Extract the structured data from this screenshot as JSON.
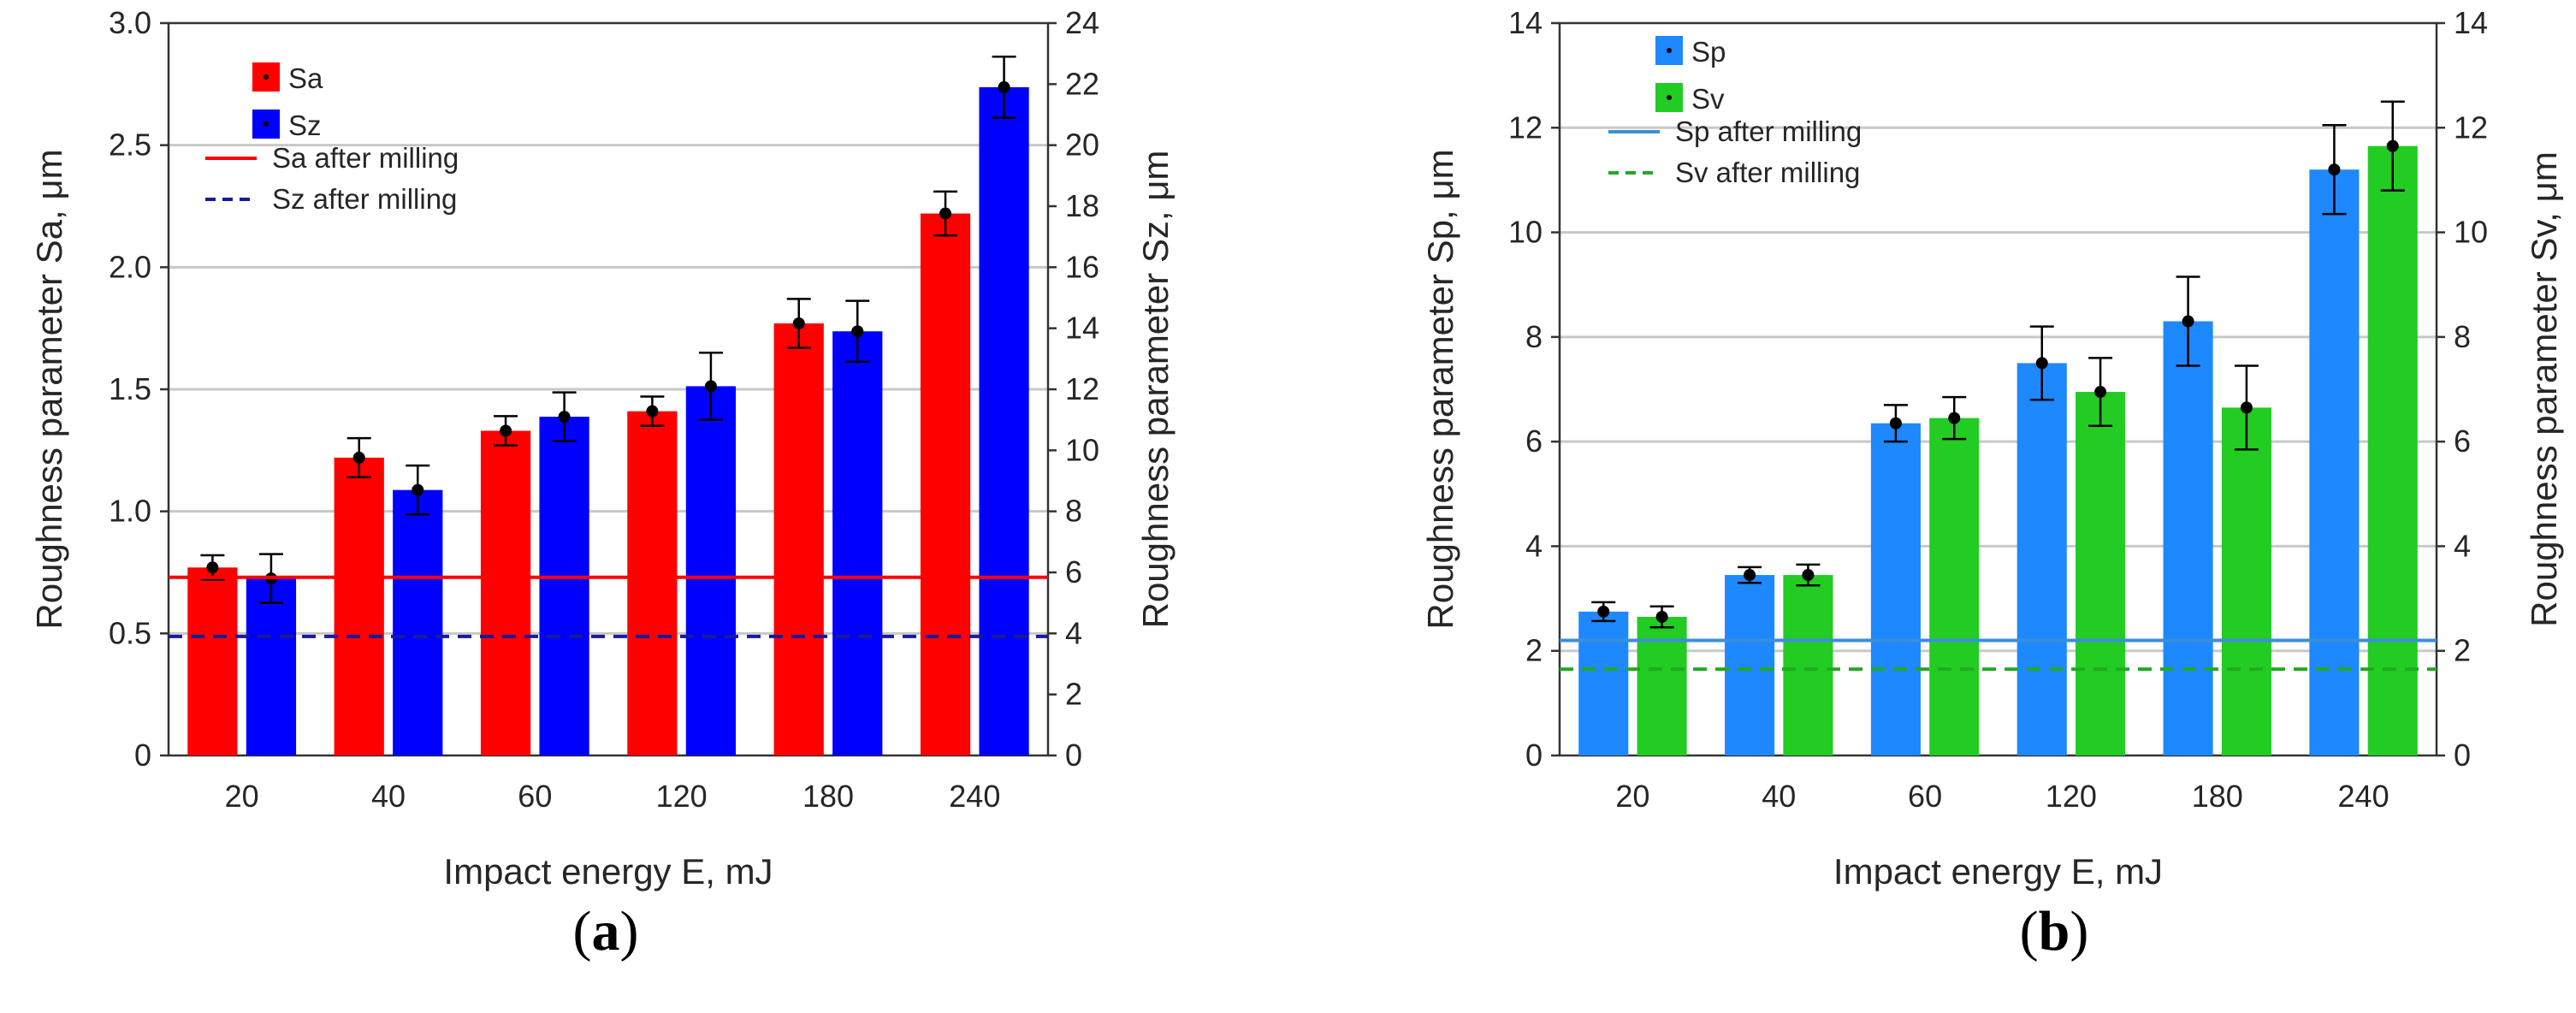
{
  "chart_data": [
    {
      "type": "bar",
      "panel_label": "a",
      "categories": [
        "20",
        "40",
        "60",
        "120",
        "180",
        "240"
      ],
      "xlabel": "Impact energy E, mJ",
      "ylabel": "Roughness parameter Sa, μm",
      "ylabel_right": "Roughness parameter Sz, μm",
      "ylim": [
        0,
        3.0
      ],
      "yticks": [
        "0",
        "0.5",
        "1.0",
        "1.5",
        "2.0",
        "2.5",
        "3.0"
      ],
      "ylim_right": [
        0,
        24
      ],
      "yticks_right": [
        "0",
        "2",
        "4",
        "6",
        "8",
        "10",
        "12",
        "14",
        "16",
        "18",
        "20",
        "22",
        "24"
      ],
      "grid": true,
      "legend_position": "top-left",
      "series": [
        {
          "name": "Sa",
          "axis": "left",
          "color": "#ff0000",
          "values": [
            0.77,
            1.22,
            1.33,
            1.41,
            1.77,
            2.22
          ],
          "errors": [
            0.05,
            0.08,
            0.06,
            0.06,
            0.1,
            0.09
          ]
        },
        {
          "name": "Sz",
          "axis": "right",
          "color": "#0000ff",
          "values": [
            5.8,
            8.7,
            11.1,
            12.1,
            13.9,
            21.9
          ],
          "errors": [
            0.8,
            0.8,
            0.8,
            1.1,
            1.0,
            1.0
          ]
        }
      ],
      "reference_lines": [
        {
          "name": "Sa after milling",
          "axis": "left",
          "value": 0.73,
          "color": "#ff0000",
          "style": "solid"
        },
        {
          "name": "Sz after milling",
          "axis": "right",
          "value": 3.9,
          "color": "#1a1a99",
          "style": "dashed"
        }
      ]
    },
    {
      "type": "bar",
      "panel_label": "b",
      "categories": [
        "20",
        "40",
        "60",
        "120",
        "180",
        "240"
      ],
      "xlabel": "Impact energy E, mJ",
      "ylabel": "Roughness parameter Sp, μm",
      "ylabel_right": "Roughness parameter Sv, μm",
      "ylim": [
        0,
        14
      ],
      "yticks": [
        "0",
        "2",
        "4",
        "6",
        "8",
        "10",
        "12",
        "14"
      ],
      "ylim_right": [
        0,
        14
      ],
      "yticks_right": [
        "0",
        "2",
        "4",
        "6",
        "8",
        "10",
        "12",
        "14"
      ],
      "grid": true,
      "legend_position": "top-left",
      "series": [
        {
          "name": "Sp",
          "axis": "left",
          "color": "#1e88ff",
          "values": [
            2.75,
            3.45,
            6.35,
            7.5,
            8.3,
            11.2
          ],
          "errors": [
            0.18,
            0.15,
            0.35,
            0.7,
            0.85,
            0.85
          ]
        },
        {
          "name": "Sv",
          "axis": "right",
          "color": "#22cc22",
          "values": [
            2.65,
            3.45,
            6.45,
            6.95,
            6.65,
            11.65
          ],
          "errors": [
            0.2,
            0.2,
            0.4,
            0.65,
            0.8,
            0.85
          ]
        }
      ],
      "reference_lines": [
        {
          "name": "Sp after milling",
          "axis": "left",
          "value": 2.2,
          "color": "#3a8fd9",
          "style": "solid"
        },
        {
          "name": "Sv after milling",
          "axis": "right",
          "value": 1.65,
          "color": "#22aa22",
          "style": "dashed"
        }
      ]
    }
  ]
}
